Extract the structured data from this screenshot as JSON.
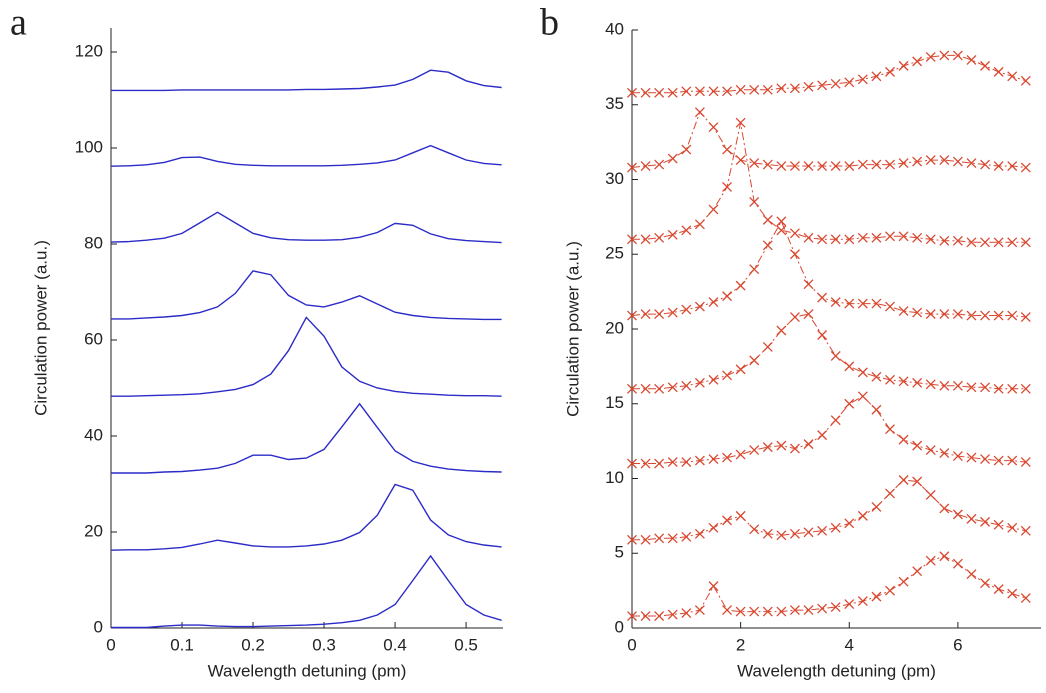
{
  "chart_data": [
    {
      "type": "line",
      "panel_label": "a",
      "xlabel": "Wavelength detuning (pm)",
      "ylabel": "Circulation power (a.u.)",
      "xlim": [
        0,
        0.552
      ],
      "ylim": [
        0,
        125
      ],
      "xticks": [
        0,
        0.1,
        0.2,
        0.3,
        0.4,
        0.5
      ],
      "yticks": [
        0,
        20,
        40,
        60,
        80,
        100,
        120
      ],
      "x": [
        0,
        0.025,
        0.05,
        0.075,
        0.1,
        0.125,
        0.15,
        0.175,
        0.2,
        0.225,
        0.25,
        0.275,
        0.3,
        0.325,
        0.35,
        0.375,
        0.4,
        0.425,
        0.45,
        0.475,
        0.5,
        0.525,
        0.55
      ],
      "series": [
        {
          "color": "#2b2bc8",
          "values": [
            0.1,
            0.1,
            0.1,
            0.4,
            0.6,
            0.6,
            0.4,
            0.3,
            0.3,
            0.4,
            0.5,
            0.6,
            0.8,
            1.1,
            1.6,
            2.7,
            4.9,
            9.9,
            15,
            9.9,
            4.9,
            2.7,
            1.6
          ]
        },
        {
          "color": "#2b2bc8",
          "values": [
            16.2,
            16.3,
            16.3,
            16.5,
            16.8,
            17.5,
            18.3,
            17.7,
            17.1,
            16.9,
            16.9,
            17.1,
            17.5,
            18.3,
            19.9,
            23.5,
            29.9,
            28.7,
            22.5,
            19.4,
            18,
            17.3,
            16.9
          ]
        },
        {
          "color": "#2b2bc8",
          "values": [
            32.3,
            32.3,
            32.3,
            32.5,
            32.6,
            32.9,
            33.3,
            34.3,
            36,
            36,
            35.1,
            35.4,
            37.2,
            41.9,
            46.7,
            41.8,
            36.9,
            34.7,
            33.7,
            33.1,
            32.8,
            32.6,
            32.5
          ]
        },
        {
          "color": "#2b2bc8",
          "values": [
            48.3,
            48.3,
            48.4,
            48.5,
            48.6,
            48.8,
            49.2,
            49.7,
            50.7,
            52.9,
            57.8,
            64.7,
            60.8,
            54.4,
            51.4,
            50,
            49.3,
            48.9,
            48.7,
            48.5,
            48.4,
            48.4,
            48.3
          ]
        },
        {
          "color": "#2b2bc8",
          "values": [
            64.4,
            64.4,
            64.6,
            64.8,
            65.1,
            65.7,
            66.9,
            69.7,
            74.4,
            73.6,
            69.3,
            67.3,
            66.9,
            67.9,
            69.2,
            67.5,
            65.8,
            65.1,
            64.7,
            64.5,
            64.4,
            64.3,
            64.3
          ]
        },
        {
          "color": "#2b2bc8",
          "values": [
            80.4,
            80.5,
            80.8,
            81.2,
            82.2,
            84.4,
            86.6,
            84.4,
            82.2,
            81.3,
            80.9,
            80.8,
            80.8,
            80.9,
            81.4,
            82.4,
            84.3,
            83.9,
            82.1,
            81.1,
            80.7,
            80.5,
            80.3
          ]
        },
        {
          "color": "#2b2bc8",
          "values": [
            96.2,
            96.3,
            96.5,
            97,
            98,
            98.1,
            97.2,
            96.6,
            96.4,
            96.3,
            96.3,
            96.3,
            96.3,
            96.4,
            96.6,
            96.9,
            97.5,
            99,
            100.5,
            99,
            97.5,
            96.8,
            96.5
          ]
        },
        {
          "color": "#2b2bc8",
          "values": [
            112,
            112,
            112,
            112,
            112.1,
            112.1,
            112.1,
            112.1,
            112.1,
            112.1,
            112.1,
            112.2,
            112.2,
            112.3,
            112.4,
            112.7,
            113.1,
            114.3,
            116.2,
            115.8,
            114,
            113,
            112.6
          ]
        }
      ]
    },
    {
      "type": "line",
      "marker": "x",
      "linestyle": "dashdot",
      "panel_label": "b",
      "xlabel": "Wavelength detuning (pm)",
      "ylabel": "Circulation power (a.u.)",
      "xlim": [
        0,
        7.53
      ],
      "ylim": [
        0,
        40
      ],
      "xticks": [
        0,
        2,
        4,
        6
      ],
      "yticks": [
        0,
        5,
        10,
        15,
        20,
        25,
        30,
        35,
        40
      ],
      "x": [
        0,
        0.25,
        0.5,
        0.75,
        1,
        1.25,
        1.5,
        1.75,
        2,
        2.25,
        2.5,
        2.75,
        3,
        3.25,
        3.5,
        3.75,
        4,
        4.25,
        4.5,
        4.75,
        5,
        5.25,
        5.5,
        5.75,
        6,
        6.25,
        6.5,
        6.75,
        7,
        7.25
      ],
      "series": [
        {
          "color": "#d9472f",
          "values": [
            0.8,
            0.8,
            0.8,
            0.9,
            1,
            1.2,
            2.8,
            1.2,
            1.1,
            1.1,
            1.1,
            1.1,
            1.2,
            1.2,
            1.3,
            1.4,
            1.6,
            1.8,
            2.1,
            2.5,
            3.1,
            3.8,
            4.5,
            4.8,
            4.3,
            3.6,
            3,
            2.6,
            2.3,
            2
          ]
        },
        {
          "color": "#d9472f",
          "values": [
            5.9,
            5.9,
            6,
            6,
            6.1,
            6.3,
            6.7,
            7.2,
            7.5,
            6.6,
            6.3,
            6.2,
            6.3,
            6.4,
            6.5,
            6.7,
            7,
            7.5,
            8.1,
            9,
            9.9,
            9.8,
            8.9,
            8,
            7.6,
            7.3,
            7.1,
            6.9,
            6.7,
            6.5
          ]
        },
        {
          "color": "#d9472f",
          "values": [
            11,
            11,
            11,
            11.1,
            11.1,
            11.2,
            11.3,
            11.4,
            11.6,
            11.9,
            12.1,
            12.2,
            12,
            12.3,
            12.9,
            13.9,
            15,
            15.5,
            14.6,
            13.3,
            12.6,
            12.2,
            11.9,
            11.7,
            11.5,
            11.4,
            11.3,
            11.2,
            11.2,
            11.1
          ]
        },
        {
          "color": "#d9472f",
          "values": [
            16,
            16,
            16,
            16.1,
            16.2,
            16.4,
            16.6,
            16.9,
            17.3,
            17.9,
            18.8,
            19.9,
            20.8,
            21,
            19.6,
            18.2,
            17.5,
            17.1,
            16.8,
            16.6,
            16.5,
            16.4,
            16.3,
            16.2,
            16.2,
            16.1,
            16.1,
            16,
            16,
            16
          ]
        },
        {
          "color": "#d9472f",
          "values": [
            20.9,
            21,
            21,
            21.1,
            21.3,
            21.5,
            21.8,
            22.2,
            22.9,
            24,
            25.6,
            27.2,
            25,
            23,
            22.1,
            21.8,
            21.7,
            21.7,
            21.7,
            21.5,
            21.2,
            21.1,
            21,
            21,
            21,
            20.9,
            20.9,
            20.9,
            20.9,
            20.8
          ]
        },
        {
          "color": "#d9472f",
          "values": [
            26,
            26,
            26.1,
            26.3,
            26.6,
            27,
            28,
            29.5,
            33.8,
            28.5,
            27.3,
            26.6,
            26.4,
            26.1,
            26,
            26,
            26,
            26.1,
            26.1,
            26.2,
            26.2,
            26.1,
            26,
            25.9,
            25.9,
            25.8,
            25.8,
            25.8,
            25.8,
            25.8
          ]
        },
        {
          "color": "#d9472f",
          "values": [
            30.8,
            30.9,
            31,
            31.4,
            32,
            34.5,
            33.5,
            32,
            31.3,
            31.1,
            31,
            30.9,
            30.9,
            30.9,
            30.9,
            30.9,
            30.9,
            31,
            31,
            31,
            31.1,
            31.2,
            31.3,
            31.3,
            31.2,
            31.1,
            31,
            30.9,
            30.9,
            30.8
          ]
        },
        {
          "color": "#d9472f",
          "values": [
            35.8,
            35.8,
            35.8,
            35.8,
            35.9,
            35.9,
            35.9,
            35.9,
            36,
            36,
            36,
            36.1,
            36.1,
            36.2,
            36.3,
            36.4,
            36.5,
            36.7,
            36.9,
            37.2,
            37.6,
            37.9,
            38.2,
            38.3,
            38.3,
            38,
            37.6,
            37.2,
            36.9,
            36.6
          ]
        }
      ]
    }
  ]
}
